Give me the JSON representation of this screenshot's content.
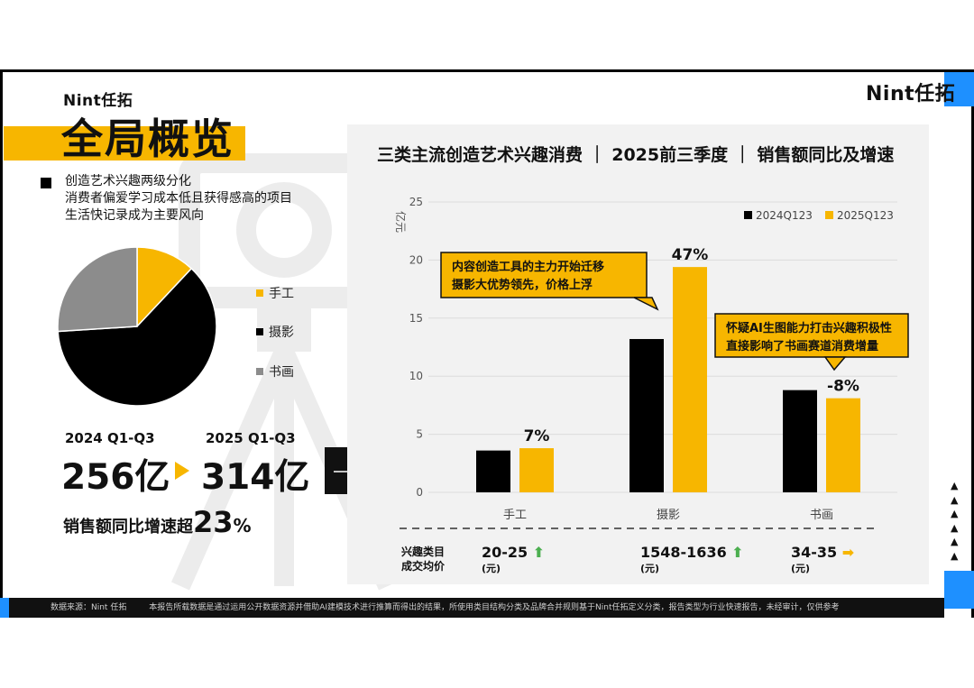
{
  "brand": {
    "logo": "Nint任拓",
    "accent": "#f7b600",
    "blue": "#1e90ff"
  },
  "page": {
    "title": "全局概览"
  },
  "summary": {
    "lines": [
      "创造艺术兴趣两级分化",
      "消费者偏爱学习成本低且获得感高的项目",
      "生活快记录成为主要风向"
    ],
    "prev_period": "2024 Q1-Q3",
    "curr_period": "2025 Q1-Q3",
    "prev_value": "256亿",
    "curr_value": "314亿",
    "growth_text": "销售额同比增速超",
    "growth_num": "23",
    "growth_unit": "%"
  },
  "pie": {
    "legend": [
      "手工",
      "摄影",
      "书画"
    ],
    "colors": [
      "#f7b600",
      "#000000",
      "#8c8c8c"
    ],
    "shares": [
      12,
      62,
      26
    ]
  },
  "chart_data": {
    "type": "bar",
    "title": "三类主流创造艺术兴趣消费 ｜ 2025前三季度 ｜ 销售额同比及增速",
    "ylabel": "亿元",
    "ylim": [
      0,
      25
    ],
    "yticks": [
      0,
      5,
      10,
      15,
      20,
      25
    ],
    "categories": [
      "手工",
      "摄影",
      "书画"
    ],
    "series": [
      {
        "name": "2024Q123",
        "color": "#000000",
        "values": [
          3.6,
          13.2,
          8.8
        ]
      },
      {
        "name": "2025Q123",
        "color": "#f7b600",
        "values": [
          3.8,
          19.4,
          8.1
        ]
      }
    ],
    "growth_labels": [
      "7%",
      "47%",
      "-8%"
    ],
    "annotations": [
      {
        "lines": [
          "内容创造工具的主力开始迁移",
          "摄影大优势领先，价格上浮"
        ]
      },
      {
        "lines": [
          "怀疑AI生图能力打击兴趣积极性",
          "直接影响了书画赛道消费增量"
        ]
      }
    ]
  },
  "price": {
    "label": [
      "兴趣类目",
      "成交均价"
    ],
    "unit": "(元)",
    "items": [
      {
        "value": "20-25",
        "trend": "up"
      },
      {
        "value": "1548-1636",
        "trend": "up"
      },
      {
        "value": "34-35",
        "trend": "flat"
      }
    ]
  },
  "footer": {
    "source": "数据来源：Nint 任拓",
    "note": "本报告所载数据是通过运用公开数据资源并借助AI建模技术进行推算而得出的结果，所使用类目结构分类及品牌合并规则基于Nint任拓定义分类，报告类型为行业快速报告，未经审计，仅供参考"
  }
}
